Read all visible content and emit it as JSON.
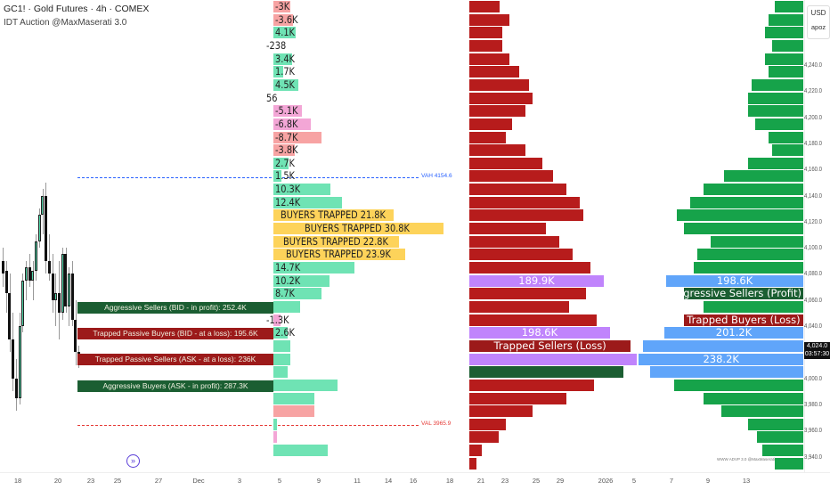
{
  "header": {
    "title": "GC1! · Gold Futures · 4h · COMEX",
    "indicator": "IDT Auction @MaxMaserati 3.0"
  },
  "price_axis": {
    "currency": "USD",
    "unit": "apoz",
    "ticks": [
      "4,240.0",
      "4,220.0",
      "4,200.0",
      "4,180.0",
      "4,160.0",
      "4,140.0",
      "4,120.0",
      "4,100.0",
      "4,080.0",
      "4,060.0",
      "4,040.0",
      "4,000.0",
      "3,980.0",
      "3,960.0",
      "3,940.0"
    ],
    "last_price": "4,024.0",
    "countdown": "03:57:30"
  },
  "time_axis": [
    "18",
    "20",
    "23",
    "25",
    "27",
    "Dec",
    "3",
    "5",
    "9",
    "11",
    "14",
    "16",
    "18",
    "21",
    "23",
    "25",
    "29",
    "2026",
    "5",
    "7",
    "9",
    "13"
  ],
  "levels": {
    "vah": "VAH 4154.6",
    "val": "VAL 3965.9",
    "vah_color": "#2962ff",
    "val_color": "#e53935"
  },
  "zone_labels": [
    {
      "text": "Aggressive Sellers (BID - in profit): 252.4K",
      "color": "#1b5e32"
    },
    {
      "text": "Trapped Passive Buyers (BID - at a loss): 195.6K",
      "color": "#9c1a1a"
    },
    {
      "text": "Trapped Passive Sellers (ASK - at a loss): 236K",
      "color": "#9c1a1a"
    },
    {
      "text": "Aggressive Buyers (ASK - in profit): 287.3K",
      "color": "#1b5e32"
    }
  ],
  "watermark": "WWW ADVP 3.0 @MaxMaserati",
  "colors": {
    "pos": "#6fe3b4",
    "neg": "#f7a3a3",
    "neg2": "#f3a6d6",
    "trap": "#fdd35a",
    "sell": "#b71c1c",
    "buy": "#16a34a",
    "poc_sell": "#c084fc",
    "poc_buy": "#60a5fa",
    "dark_green": "#1b5e32",
    "dark_red": "#9c1a1a",
    "candle_up": "#4fd6a8",
    "candle_down": "#111111"
  },
  "chart_data": {
    "type": "bar",
    "price_rows_top": "4,250 to 3,935 (36 rows)",
    "delta": {
      "values": [
        -3,
        -3.6,
        4.1,
        -0.238,
        3.4,
        1.7,
        4.5,
        0.056,
        -5.1,
        -6.8,
        -8.7,
        -3.8,
        2.7,
        1.5,
        10.3,
        12.4,
        21.8,
        30.8,
        22.8,
        23.9,
        14.7,
        10.2,
        8.7,
        4.8,
        -1.3,
        2.6,
        3,
        3,
        2.5,
        11.6,
        7.4,
        -7.4,
        0.6,
        -0.6,
        9.8,
        0
      ],
      "labels": [
        "-3K",
        "-3.6K",
        "4.1K",
        "-238",
        "3.4K",
        "1.7K",
        "4.5K",
        "56",
        "-5.1K",
        "-6.8K",
        "-8.7K",
        "-3.8K",
        "2.7K",
        "1.5K",
        "10.3K",
        "12.4K",
        "BUYERS TRAPPED 21.8K",
        "BUYERS TRAPPED 30.8K",
        "BUYERS TRAPPED 22.8K",
        "BUYERS TRAPPED 23.9K",
        "14.7K",
        "10.2K",
        "8.7K",
        "",
        "-1.3K",
        "2.6K",
        "",
        "",
        "",
        "",
        "",
        "",
        "",
        "",
        "",
        ""
      ],
      "kinds": [
        "neg",
        "neg",
        "pos",
        "none",
        "pos",
        "pos",
        "pos",
        "none",
        "neg2",
        "neg2",
        "neg",
        "neg",
        "pos",
        "pos",
        "pos",
        "pos",
        "trap",
        "trap",
        "trap",
        "trap",
        "pos",
        "pos",
        "pos",
        "pos",
        "neg2",
        "pos",
        "pos",
        "pos",
        "pos",
        "pos",
        "pos",
        "neg",
        "pos",
        "neg2",
        "pos",
        "none"
      ]
    },
    "sell_volume": {
      "values": [
        43,
        57,
        47,
        47,
        57,
        70,
        84,
        89,
        79,
        60,
        52,
        79,
        103,
        118,
        137,
        156,
        161,
        108,
        127,
        146,
        171,
        189.9,
        165,
        141,
        180,
        198.6,
        228,
        236,
        218,
        176,
        137,
        89,
        52,
        42,
        18,
        10
      ],
      "labels": {
        "21": "189.9K",
        "25": "198.6K",
        "26": "Trapped Sellers (Loss)"
      },
      "kinds": {
        "21": "poc_sell",
        "25": "poc_sell",
        "26": "dark_red",
        "27": "poc_sell",
        "28": "dark_green"
      }
    },
    "buy_volume": {
      "values": [
        41,
        50,
        55,
        45,
        55,
        50,
        75,
        80,
        80,
        70,
        50,
        45,
        80,
        115,
        145,
        164,
        183,
        173,
        134,
        154,
        159,
        198.6,
        173,
        145,
        173,
        201.2,
        232,
        238.2,
        222,
        187,
        145,
        119,
        80,
        67,
        59,
        41
      ],
      "labels": {
        "21": "198.6K",
        "22": "Aggressive Sellers (Profit)",
        "24": "Trapped Buyers (Loss)",
        "25": "201.2K",
        "27": "238.2K"
      },
      "kinds": {
        "21": "poc_buy",
        "22": "dark_green",
        "24": "dark_red",
        "25": "poc_buy",
        "26": "poc_buy",
        "27": "poc_buy",
        "28": "poc_buy"
      }
    },
    "candles": [
      [
        4090,
        4100,
        4070,
        4080
      ],
      [
        4082,
        4090,
        4050,
        4065
      ],
      [
        4065,
        4080,
        4020,
        4030
      ],
      [
        4030,
        4050,
        3990,
        4000
      ],
      [
        4000,
        4015,
        3975,
        3985
      ],
      [
        3985,
        4050,
        3980,
        4040
      ],
      [
        4040,
        4080,
        4035,
        4075
      ],
      [
        4075,
        4090,
        4060,
        4085
      ],
      [
        4085,
        4095,
        4070,
        4075
      ],
      [
        4075,
        4090,
        4060,
        4082
      ],
      [
        4082,
        4110,
        4075,
        4105
      ],
      [
        4105,
        4130,
        4100,
        4125
      ],
      [
        4125,
        4145,
        4110,
        4140
      ],
      [
        4140,
        4150,
        4080,
        4090
      ],
      [
        4090,
        4110,
        4075,
        4080
      ],
      [
        4080,
        4095,
        4050,
        4060
      ],
      [
        4060,
        4080,
        4040,
        4065
      ],
      [
        4065,
        4090,
        4030,
        4050
      ],
      [
        4050,
        4100,
        4045,
        4095
      ],
      [
        4095,
        4100,
        4050,
        4055
      ],
      [
        4055,
        4085,
        4040,
        4080
      ],
      [
        4080,
        4090,
        4040,
        4045
      ],
      [
        4045,
        4060,
        4010,
        4020
      ],
      [
        4020,
        4025,
        4008,
        4012
      ]
    ]
  }
}
